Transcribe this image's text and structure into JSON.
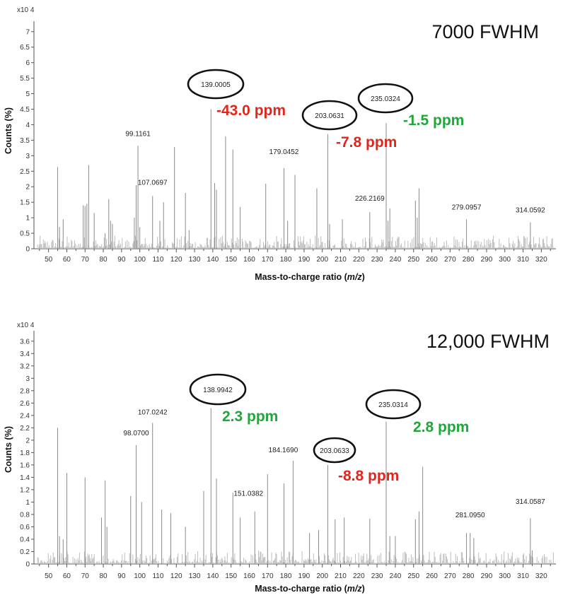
{
  "colors": {
    "good": "#1fa83a",
    "bad": "#e0261d",
    "peak": "#8a8a8a",
    "noise": "#bdbdbd",
    "axis": "#555555"
  },
  "chart_data": [
    {
      "type": "bar",
      "title": "7000 FWHM",
      "xlabel": "Mass-to-charge ratio (m/z)",
      "ylabel": "Counts (%)",
      "scale_label": "x10 4",
      "xlim": [
        42,
        328
      ],
      "ylim": [
        0,
        7.2
      ],
      "xticks": [
        50,
        60,
        70,
        80,
        90,
        100,
        110,
        120,
        130,
        140,
        150,
        160,
        170,
        180,
        190,
        200,
        210,
        220,
        230,
        240,
        250,
        260,
        270,
        280,
        290,
        300,
        310,
        320
      ],
      "yticks": [
        0,
        0.5,
        1,
        1.5,
        2,
        2.5,
        3,
        3.5,
        4,
        4.5,
        5,
        5.5,
        6,
        6.5,
        7
      ],
      "ytick_labels": [
        "0",
        "0.5",
        "1",
        "1.5",
        "2",
        "2.5",
        "3",
        "3.5",
        "4",
        "4.5",
        "5",
        "5.5",
        "6",
        "6.5",
        "7"
      ],
      "peaks": [
        {
          "x": 55,
          "y": 2.63
        },
        {
          "x": 56,
          "y": 0.7
        },
        {
          "x": 58,
          "y": 0.95
        },
        {
          "x": 69,
          "y": 1.4
        },
        {
          "x": 70,
          "y": 1.38
        },
        {
          "x": 71,
          "y": 1.45
        },
        {
          "x": 72,
          "y": 2.7
        },
        {
          "x": 75,
          "y": 1.15
        },
        {
          "x": 81,
          "y": 0.5
        },
        {
          "x": 83,
          "y": 1.6
        },
        {
          "x": 84,
          "y": 0.9
        },
        {
          "x": 85,
          "y": 0.8
        },
        {
          "x": 97,
          "y": 1.0
        },
        {
          "x": 98,
          "y": 2.05
        },
        {
          "x": 99,
          "y": 3.32
        },
        {
          "x": 100,
          "y": 0.7
        },
        {
          "x": 107,
          "y": 1.7
        },
        {
          "x": 111,
          "y": 0.9
        },
        {
          "x": 113,
          "y": 1.5
        },
        {
          "x": 119,
          "y": 3.28
        },
        {
          "x": 125,
          "y": 1.8
        },
        {
          "x": 127,
          "y": 0.6
        },
        {
          "x": 139,
          "y": 4.5
        },
        {
          "x": 141,
          "y": 2.12
        },
        {
          "x": 142,
          "y": 1.9
        },
        {
          "x": 147,
          "y": 3.62
        },
        {
          "x": 151,
          "y": 3.2
        },
        {
          "x": 155,
          "y": 1.35
        },
        {
          "x": 169,
          "y": 2.1
        },
        {
          "x": 179,
          "y": 2.6
        },
        {
          "x": 181,
          "y": 0.9
        },
        {
          "x": 185,
          "y": 2.38
        },
        {
          "x": 197,
          "y": 1.95
        },
        {
          "x": 203,
          "y": 3.7
        },
        {
          "x": 204,
          "y": 0.8
        },
        {
          "x": 211,
          "y": 0.95
        },
        {
          "x": 226,
          "y": 1.18
        },
        {
          "x": 235,
          "y": 4.05
        },
        {
          "x": 236,
          "y": 0.9
        },
        {
          "x": 237,
          "y": 1.3
        },
        {
          "x": 251,
          "y": 1.55
        },
        {
          "x": 252,
          "y": 1.0
        },
        {
          "x": 253,
          "y": 1.95
        },
        {
          "x": 279,
          "y": 0.95
        },
        {
          "x": 314,
          "y": 0.85
        }
      ],
      "labels": [
        {
          "text": "99.1161",
          "x": 99,
          "y": 3.32
        },
        {
          "text": "107.0697",
          "x": 107,
          "y": 1.7
        },
        {
          "text": "139.0005",
          "x": 139,
          "y": 4.5,
          "circled": true
        },
        {
          "text": "179.0452",
          "x": 179,
          "y": 2.6
        },
        {
          "text": "203.0631",
          "x": 203,
          "y": 3.7,
          "circled": true
        },
        {
          "text": "226.2169",
          "x": 226,
          "y": 1.18
        },
        {
          "text": "235.0324",
          "x": 235,
          "y": 4.05,
          "circled": true
        },
        {
          "text": "279.0957",
          "x": 279,
          "y": 0.95
        },
        {
          "text": "314.0592",
          "x": 314,
          "y": 0.85
        }
      ],
      "annotations": [
        {
          "text": "-43.0 ppm",
          "status": "bad"
        },
        {
          "text": "-7.8 ppm",
          "status": "bad"
        },
        {
          "text": "-1.5 ppm",
          "status": "good"
        }
      ]
    },
    {
      "type": "bar",
      "title": "12,000 FWHM",
      "xlabel": "Mass-to-charge ratio (m/z)",
      "ylabel": "Counts (%)",
      "scale_label": "x10 4",
      "xlim": [
        42,
        328
      ],
      "ylim": [
        0,
        3.7
      ],
      "xticks": [
        50,
        60,
        70,
        80,
        90,
        100,
        110,
        120,
        130,
        140,
        150,
        160,
        170,
        180,
        190,
        200,
        210,
        220,
        230,
        240,
        250,
        260,
        270,
        280,
        290,
        300,
        310,
        320
      ],
      "yticks": [
        0,
        0.2,
        0.4,
        0.6,
        0.8,
        1.0,
        1.2,
        1.4,
        1.6,
        1.8,
        2.0,
        2.2,
        2.4,
        2.6,
        2.8,
        3.0,
        3.2,
        3.4,
        3.6
      ],
      "ytick_labels": [
        "0",
        "0.2",
        "0.4",
        "0.6",
        "0.8",
        "1",
        "1.2",
        "1.4",
        "1.6",
        "1.8",
        "2",
        "2.2",
        "2.4",
        "2.6",
        "2.8",
        "3",
        "3.2",
        "3.4",
        "3.6"
      ],
      "peaks": [
        {
          "x": 55,
          "y": 2.2
        },
        {
          "x": 56,
          "y": 0.45
        },
        {
          "x": 58,
          "y": 0.4
        },
        {
          "x": 60,
          "y": 1.47
        },
        {
          "x": 70,
          "y": 1.4
        },
        {
          "x": 79,
          "y": 0.75
        },
        {
          "x": 81,
          "y": 1.35
        },
        {
          "x": 82,
          "y": 0.6
        },
        {
          "x": 95,
          "y": 1.1
        },
        {
          "x": 98,
          "y": 1.92
        },
        {
          "x": 101,
          "y": 1.0
        },
        {
          "x": 107,
          "y": 2.28
        },
        {
          "x": 112,
          "y": 0.88
        },
        {
          "x": 117,
          "y": 0.82
        },
        {
          "x": 125,
          "y": 0.6
        },
        {
          "x": 135,
          "y": 1.18
        },
        {
          "x": 139,
          "y": 2.52
        },
        {
          "x": 142,
          "y": 1.38
        },
        {
          "x": 151,
          "y": 1.15
        },
        {
          "x": 155,
          "y": 0.75
        },
        {
          "x": 163,
          "y": 0.85
        },
        {
          "x": 170,
          "y": 1.45
        },
        {
          "x": 179,
          "y": 1.3
        },
        {
          "x": 184,
          "y": 1.67
        },
        {
          "x": 193,
          "y": 0.5
        },
        {
          "x": 198,
          "y": 0.55
        },
        {
          "x": 203,
          "y": 1.6
        },
        {
          "x": 207,
          "y": 0.72
        },
        {
          "x": 212,
          "y": 0.75
        },
        {
          "x": 226,
          "y": 0.73
        },
        {
          "x": 235,
          "y": 2.3
        },
        {
          "x": 237,
          "y": 0.45
        },
        {
          "x": 240,
          "y": 0.45
        },
        {
          "x": 251,
          "y": 0.72
        },
        {
          "x": 253,
          "y": 0.85
        },
        {
          "x": 255,
          "y": 1.57
        },
        {
          "x": 279,
          "y": 0.5
        },
        {
          "x": 281,
          "y": 0.5
        },
        {
          "x": 283,
          "y": 0.42
        },
        {
          "x": 314,
          "y": 0.74
        },
        {
          "x": 315,
          "y": 0.22
        }
      ],
      "labels": [
        {
          "text": "98.0700",
          "x": 98,
          "y": 1.92
        },
        {
          "text": "107.0242",
          "x": 107,
          "y": 2.28
        },
        {
          "text": "138.9942",
          "x": 139,
          "y": 2.52,
          "circled": true
        },
        {
          "text": "151.0382",
          "x": 151,
          "y": 1.15
        },
        {
          "text": "184.1690",
          "x": 184,
          "y": 1.67
        },
        {
          "text": "203.0633",
          "x": 203,
          "y": 1.6,
          "circled": true
        },
        {
          "text": "235.0314",
          "x": 235,
          "y": 2.3,
          "circled": true
        },
        {
          "text": "281.0950",
          "x": 281,
          "y": 0.5
        },
        {
          "text": "314.0587",
          "x": 314,
          "y": 0.74
        }
      ],
      "annotations": [
        {
          "text": "2.3 ppm",
          "status": "good"
        },
        {
          "text": "-8.8 ppm",
          "status": "bad"
        },
        {
          "text": "2.8 ppm",
          "status": "good"
        }
      ]
    }
  ]
}
